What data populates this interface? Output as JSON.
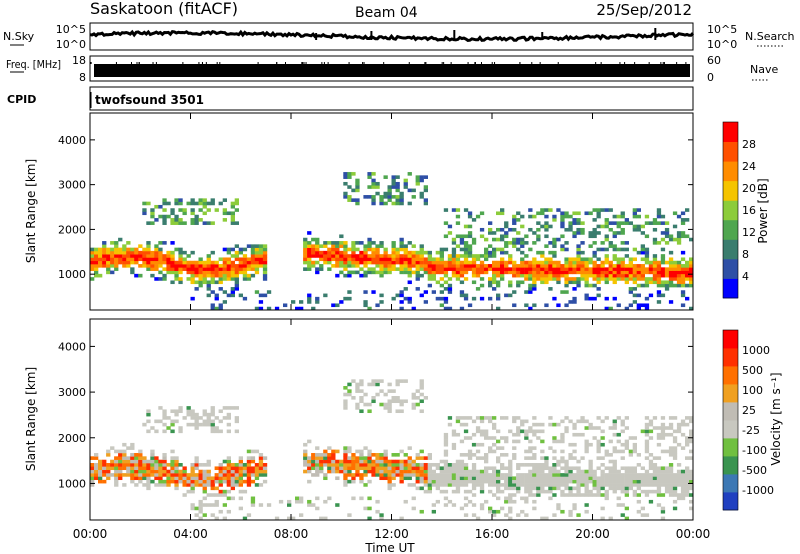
{
  "header": {
    "title": "Saskatoon (fitACF)",
    "beam": "Beam 04",
    "date": "25/Sep/2012"
  },
  "colors": {
    "power_scale": [
      "#0000ff",
      "#2e4fa6",
      "#3a7d6e",
      "#4fa64f",
      "#8ccc3a",
      "#f5c400",
      "#ff8c00",
      "#ff5000",
      "#ff0000"
    ],
    "velocity_scale": [
      "#2040c0",
      "#3c78b4",
      "#3a9450",
      "#70c040",
      "#c8c8c0",
      "#c0bcb4",
      "#f0a020",
      "#ff7000",
      "#ff3000",
      "#ff0000"
    ]
  },
  "chart_data": [
    {
      "type": "line",
      "name": "noise",
      "series": [
        {
          "name": "N.Sky",
          "style": "solid"
        },
        {
          "name": "N.Search",
          "style": "dotted"
        }
      ],
      "left_ticks": [
        "10^5",
        "10^0"
      ],
      "right_ticks": [
        "10^5",
        "10^0"
      ]
    },
    {
      "type": "bar",
      "name": "frequency-nave",
      "series": [
        {
          "name": "Freq. [MHz]",
          "style": "solid"
        },
        {
          "name": "Nave",
          "style": "dotted"
        }
      ],
      "left_ticks": [
        "18",
        "8"
      ],
      "right_ticks": [
        "60",
        "0"
      ]
    },
    {
      "type": "heatmap",
      "name": "power",
      "cpid_label": "CPID",
      "cpid_value": "twofsound 3501",
      "ylabel": "Slant Range [km]",
      "ylim": [
        200,
        4600
      ],
      "yticks": [
        1000,
        2000,
        3000,
        4000
      ],
      "colorbar": {
        "label": "Power [dB]",
        "range": [
          0,
          32
        ],
        "ticks": [
          4,
          8,
          12,
          16,
          20,
          24,
          28
        ]
      }
    },
    {
      "type": "heatmap",
      "name": "velocity",
      "ylabel": "Slant Range [km]",
      "ylim": [
        200,
        4600
      ],
      "yticks": [
        1000,
        2000,
        3000,
        4000
      ],
      "colorbar": {
        "label": "Velocity [m s⁻¹]",
        "ticks": [
          "1000",
          "500",
          "100",
          "25",
          "-25",
          "-100",
          "-500",
          "-1000"
        ]
      }
    }
  ],
  "x_axis": {
    "label": "Time UT",
    "ticks": [
      "00:00",
      "04:00",
      "08:00",
      "12:00",
      "16:00",
      "20:00",
      "00:00"
    ],
    "range_hours": [
      0,
      24
    ]
  }
}
